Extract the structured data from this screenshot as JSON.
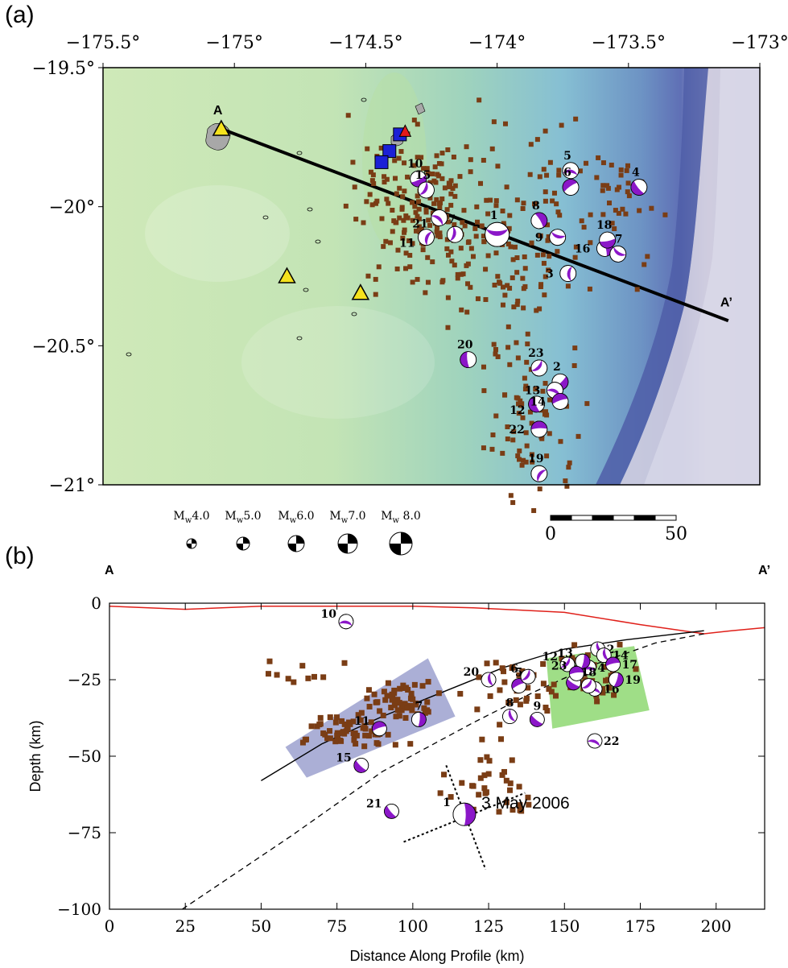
{
  "panel_a_label": "(a)",
  "panel_b_label": "(b)",
  "chart_data": [
    {
      "type": "scatter",
      "panel": "(a)",
      "subtype": "map",
      "x_ticks": [
        "−175.5°",
        "−175°",
        "−174.5°",
        "−174°",
        "−173.5°",
        "−173°"
      ],
      "y_ticks": [
        "−19.5°",
        "−20°",
        "−20.5°",
        "−21°"
      ],
      "xlim": [
        -175.5,
        -173.0
      ],
      "ylim": [
        -21.0,
        -19.5
      ],
      "profile": {
        "start_label": "A",
        "end_label": "A’",
        "start": [
          -175.05,
          -19.72
        ],
        "end": [
          -173.12,
          -20.41
        ]
      },
      "triangles": [
        [
          -175.05,
          -19.72
        ],
        [
          -174.8,
          -20.25
        ],
        [
          -174.52,
          -20.31
        ]
      ],
      "red_triangle": [
        -174.35,
        -19.73
      ],
      "blue_squares": [
        [
          -174.37,
          -19.74
        ],
        [
          -174.41,
          -19.8
        ],
        [
          -174.44,
          -19.84
        ]
      ],
      "mechanisms": [
        {
          "id": "1",
          "lon": -174.0,
          "lat": -20.1,
          "size": "large"
        },
        {
          "id": "2",
          "lon": -173.76,
          "lat": -20.63
        },
        {
          "id": "3",
          "lon": -173.73,
          "lat": -20.24
        },
        {
          "id": "4",
          "lon": -173.46,
          "lat": -19.93
        },
        {
          "id": "5",
          "lon": -173.72,
          "lat": -19.87
        },
        {
          "id": "6",
          "lon": -173.72,
          "lat": -19.93
        },
        {
          "id": "7",
          "lon": -174.16,
          "lat": -20.1
        },
        {
          "id": "8",
          "lon": -173.84,
          "lat": -20.05
        },
        {
          "id": "9",
          "lon": -173.77,
          "lat": -20.11
        },
        {
          "id": "10",
          "lon": -174.3,
          "lat": -19.9
        },
        {
          "id": "11",
          "lon": -174.27,
          "lat": -20.11
        },
        {
          "id": "12",
          "lon": -173.85,
          "lat": -20.71
        },
        {
          "id": "13",
          "lon": -173.78,
          "lat": -20.66
        },
        {
          "id": "14",
          "lon": -173.76,
          "lat": -20.7
        },
        {
          "id": "15",
          "lon": -174.27,
          "lat": -19.94
        },
        {
          "id": "16",
          "lon": -173.59,
          "lat": -20.15
        },
        {
          "id": "17",
          "lon": -173.54,
          "lat": -20.17
        },
        {
          "id": "18",
          "lon": -173.58,
          "lat": -20.12
        },
        {
          "id": "19",
          "lon": -173.84,
          "lat": -20.96
        },
        {
          "id": "20",
          "lon": -174.11,
          "lat": -20.55
        },
        {
          "id": "21",
          "lon": -174.22,
          "lat": -20.04
        },
        {
          "id": "22",
          "lon": -173.84,
          "lat": -20.8
        },
        {
          "id": "23",
          "lon": -173.84,
          "lat": -20.58
        }
      ],
      "magnitude_legend": [
        "M_w4.0",
        "M_w5.0",
        "M_w6.0",
        "M_w7.0",
        "M_w 8.0"
      ],
      "scale_bar": {
        "labels": [
          "0",
          "50"
        ]
      }
    },
    {
      "type": "scatter",
      "panel": "(b)",
      "xlabel": "Distance Along Profile (km)",
      "ylabel": "Depth (km)",
      "x_ticks": [
        "0",
        "25",
        "50",
        "75",
        "100",
        "125",
        "150",
        "175",
        "200"
      ],
      "y_ticks": [
        "0",
        "−25",
        "−50",
        "−75",
        "−100"
      ],
      "xlim": [
        0,
        216
      ],
      "ylim": [
        -100,
        0
      ],
      "end_labels": [
        "A",
        "A’"
      ],
      "annotation": "3 May 2006",
      "mechanisms": [
        {
          "id": "1",
          "x": 117,
          "y": -69
        },
        {
          "id": "2",
          "x": 161,
          "y": -15
        },
        {
          "id": "3",
          "x": 153,
          "y": -26
        },
        {
          "id": "4",
          "x": 158,
          "y": -21
        },
        {
          "id": "5",
          "x": 135,
          "y": -27
        },
        {
          "id": "6",
          "x": 138,
          "y": -24
        },
        {
          "id": "7",
          "x": 102,
          "y": -38
        },
        {
          "id": "8",
          "x": 132,
          "y": -37
        },
        {
          "id": "9",
          "x": 141,
          "y": -38
        },
        {
          "id": "10",
          "x": 78,
          "y": -6
        },
        {
          "id": "11",
          "x": 89,
          "y": -41
        },
        {
          "id": "12",
          "x": 151,
          "y": -20
        },
        {
          "id": "13",
          "x": 156,
          "y": -19
        },
        {
          "id": "14",
          "x": 163,
          "y": -17
        },
        {
          "id": "15",
          "x": 83,
          "y": -53
        },
        {
          "id": "16",
          "x": 160,
          "y": -28
        },
        {
          "id": "17",
          "x": 166,
          "y": -20
        },
        {
          "id": "18",
          "x": 158,
          "y": -27
        },
        {
          "id": "19",
          "x": 167,
          "y": -25
        },
        {
          "id": "20",
          "x": 125,
          "y": -25
        },
        {
          "id": "21",
          "x": 93,
          "y": -68
        },
        {
          "id": "22",
          "x": 160,
          "y": -45
        },
        {
          "id": "23",
          "x": 154,
          "y": -23
        }
      ],
      "slab_top_curve": [
        [
          50,
          -58
        ],
        [
          70,
          -46
        ],
        [
          90,
          -37
        ],
        [
          110,
          -29
        ],
        [
          130,
          -21
        ],
        [
          150,
          -15
        ],
        [
          170,
          -12
        ],
        [
          196,
          -9
        ]
      ],
      "slab_dashed_curve": [
        [
          24,
          -100
        ],
        [
          60,
          -76
        ],
        [
          90,
          -55
        ],
        [
          120,
          -39
        ],
        [
          140,
          -29
        ],
        [
          160,
          -20
        ],
        [
          180,
          -13
        ],
        [
          196,
          -10
        ]
      ],
      "bathymetry_curve": [
        [
          0,
          -1
        ],
        [
          25,
          -2
        ],
        [
          50,
          -1
        ],
        [
          100,
          -1
        ],
        [
          120,
          -1.5
        ],
        [
          150,
          -3
        ],
        [
          175,
          -7
        ],
        [
          196,
          -10
        ],
        [
          205,
          -9
        ],
        [
          216,
          -8
        ]
      ]
    }
  ]
}
